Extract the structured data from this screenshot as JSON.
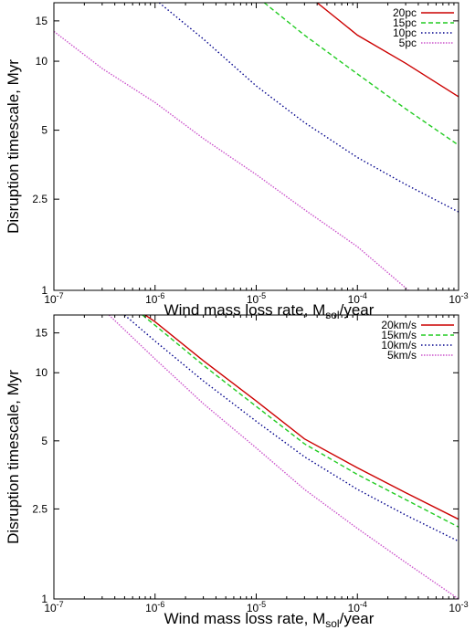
{
  "chart_data": [
    {
      "type": "line",
      "xlabel": "Wind mass loss rate, M",
      "xlabel_sub": "sol",
      "xlabel_suffix": "/year",
      "ylabel": "Disruption timescale, Myr",
      "xscale": "log",
      "yscale": "log",
      "xlim": [
        1e-07,
        0.001
      ],
      "ylim": [
        1,
        18
      ],
      "xticks": [
        {
          "value": 1e-07,
          "base": "10",
          "exp": "-7"
        },
        {
          "value": 1e-06,
          "base": "10",
          "exp": "-6"
        },
        {
          "value": 1e-05,
          "base": "10",
          "exp": "-5"
        },
        {
          "value": 0.0001,
          "base": "10",
          "exp": "-4"
        },
        {
          "value": 0.001,
          "base": "10",
          "exp": "-3"
        }
      ],
      "yticks": [
        {
          "value": 1,
          "label": "1"
        },
        {
          "value": 2.5,
          "label": "2.5"
        },
        {
          "value": 5,
          "label": "5"
        },
        {
          "value": 10,
          "label": "10"
        },
        {
          "value": 15,
          "label": "15"
        }
      ],
      "grid": false,
      "legend_position": "top-right",
      "series": [
        {
          "name": "20pc",
          "color": "#cc0000",
          "dash": "solid",
          "x": [
            4e-05,
            0.0001,
            0.0003,
            0.001
          ],
          "y": [
            18,
            13,
            9.8,
            7.0
          ]
        },
        {
          "name": "15pc",
          "color": "#22cc22",
          "dash": "dashed",
          "x": [
            1.2e-05,
            3e-05,
            0.0001,
            0.0003,
            0.001
          ],
          "y": [
            18,
            13,
            8.8,
            6.2,
            4.3
          ]
        },
        {
          "name": "10pc",
          "color": "#00008b",
          "dash": "dotted",
          "x": [
            1.1e-06,
            3e-06,
            1e-05,
            3e-05,
            0.0001,
            0.0003,
            0.001
          ],
          "y": [
            18,
            12.5,
            7.8,
            5.4,
            3.8,
            2.9,
            2.2
          ]
        },
        {
          "name": "5pc",
          "color": "#cc55cc",
          "dash": "dashdot",
          "x": [
            1e-07,
            3e-07,
            1e-06,
            3e-06,
            1e-05,
            3e-05,
            0.0001,
            0.00032
          ],
          "y": [
            13.5,
            9.3,
            6.6,
            4.6,
            3.2,
            2.25,
            1.55,
            1.0
          ]
        }
      ]
    },
    {
      "type": "line",
      "xlabel": "Wind mass loss rate, M",
      "xlabel_sub": "sol",
      "xlabel_suffix": "/year",
      "ylabel": "Disruption timescale, Myr",
      "xscale": "log",
      "yscale": "log",
      "xlim": [
        1e-07,
        0.001
      ],
      "ylim": [
        1,
        18
      ],
      "xticks": [
        {
          "value": 1e-07,
          "base": "10",
          "exp": "-7"
        },
        {
          "value": 1e-06,
          "base": "10",
          "exp": "-6"
        },
        {
          "value": 1e-05,
          "base": "10",
          "exp": "-5"
        },
        {
          "value": 0.0001,
          "base": "10",
          "exp": "-4"
        },
        {
          "value": 0.001,
          "base": "10",
          "exp": "-3"
        }
      ],
      "yticks": [
        {
          "value": 1,
          "label": "1"
        },
        {
          "value": 2.5,
          "label": "2.5"
        },
        {
          "value": 5,
          "label": "5"
        },
        {
          "value": 10,
          "label": "10"
        },
        {
          "value": 15,
          "label": "15"
        }
      ],
      "grid": false,
      "legend_position": "top-right",
      "series": [
        {
          "name": "20km/s",
          "color": "#cc0000",
          "dash": "solid",
          "x": [
            8e-07,
            1e-06,
            3e-06,
            1e-05,
            3e-05,
            0.0001,
            0.0003,
            0.001
          ],
          "y": [
            18,
            16.8,
            11.3,
            7.5,
            5.1,
            3.8,
            2.95,
            2.25
          ]
        },
        {
          "name": "15km/s",
          "color": "#22cc22",
          "dash": "dashed",
          "x": [
            7.5e-07,
            1e-06,
            3e-06,
            1e-05,
            3e-05,
            0.0001,
            0.0003,
            0.001
          ],
          "y": [
            18,
            16.2,
            10.8,
            7.1,
            4.85,
            3.55,
            2.75,
            2.08
          ]
        },
        {
          "name": "10km/s",
          "color": "#00008b",
          "dash": "dotted",
          "x": [
            5e-07,
            1e-06,
            3e-06,
            1e-05,
            3e-05,
            0.0001,
            0.0003,
            0.001
          ],
          "y": [
            18,
            13.8,
            9.2,
            6.1,
            4.25,
            3.05,
            2.35,
            1.8
          ]
        },
        {
          "name": "5km/s",
          "color": "#cc55cc",
          "dash": "dashdot",
          "x": [
            3.5e-07,
            1e-06,
            3e-06,
            1e-05,
            3e-05,
            0.0001,
            0.0003,
            0.001
          ],
          "y": [
            18,
            11.5,
            7.3,
            4.65,
            3.05,
            2.05,
            1.45,
            1.0
          ]
        }
      ]
    }
  ]
}
